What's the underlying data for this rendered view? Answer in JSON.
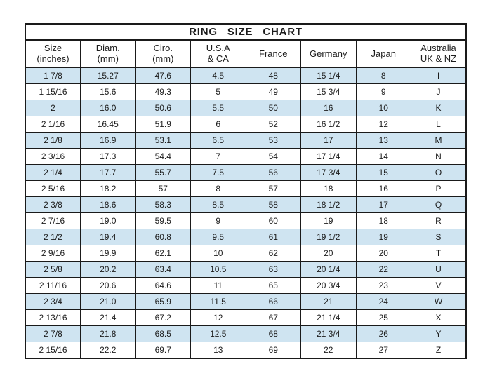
{
  "chart_data": {
    "type": "table",
    "title": "RING  SIZE  CHART",
    "columns": [
      {
        "label": "Size",
        "sublabel": "(inches)"
      },
      {
        "label": "Diam.",
        "sublabel": "(mm)"
      },
      {
        "label": "Ciro.",
        "sublabel": "(mm)"
      },
      {
        "label": "U.S.A",
        "sublabel": "& CA"
      },
      {
        "label": "France",
        "sublabel": ""
      },
      {
        "label": "Germany",
        "sublabel": ""
      },
      {
        "label": "Japan",
        "sublabel": ""
      },
      {
        "label": "Australia",
        "sublabel": "UK & NZ"
      }
    ],
    "rows": [
      [
        "1 7/8",
        "15.27",
        "47.6",
        "4.5",
        "48",
        "15 1/4",
        "8",
        "I"
      ],
      [
        "1 15/16",
        "15.6",
        "49.3",
        "5",
        "49",
        "15 3/4",
        "9",
        "J"
      ],
      [
        "2",
        "16.0",
        "50.6",
        "5.5",
        "50",
        "16",
        "10",
        "K"
      ],
      [
        "2 1/16",
        "16.45",
        "51.9",
        "6",
        "52",
        "16 1/2",
        "12",
        "L"
      ],
      [
        "2 1/8",
        "16.9",
        "53.1",
        "6.5",
        "53",
        "17",
        "13",
        "M"
      ],
      [
        "2 3/16",
        "17.3",
        "54.4",
        "7",
        "54",
        "17 1/4",
        "14",
        "N"
      ],
      [
        "2 1/4",
        "17.7",
        "55.7",
        "7.5",
        "56",
        "17 3/4",
        "15",
        "O"
      ],
      [
        "2 5/16",
        "18.2",
        "57",
        "8",
        "57",
        "18",
        "16",
        "P"
      ],
      [
        "2 3/8",
        "18.6",
        "58.3",
        "8.5",
        "58",
        "18 1/2",
        "17",
        "Q"
      ],
      [
        "2 7/16",
        "19.0",
        "59.5",
        "9",
        "60",
        "19",
        "18",
        "R"
      ],
      [
        "2 1/2",
        "19.4",
        "60.8",
        "9.5",
        "61",
        "19 1/2",
        "19",
        "S"
      ],
      [
        "2 9/16",
        "19.9",
        "62.1",
        "10",
        "62",
        "20",
        "20",
        "T"
      ],
      [
        "2 5/8",
        "20.2",
        "63.4",
        "10.5",
        "63",
        "20 1/4",
        "22",
        "U"
      ],
      [
        "2 11/16",
        "20.6",
        "64.6",
        "11",
        "65",
        "20 3/4",
        "23",
        "V"
      ],
      [
        "2 3/4",
        "21.0",
        "65.9",
        "11.5",
        "66",
        "21",
        "24",
        "W"
      ],
      [
        "2 13/16",
        "21.4",
        "67.2",
        "12",
        "67",
        "21 1/4",
        "25",
        "X"
      ],
      [
        "2 7/8",
        "21.8",
        "68.5",
        "12.5",
        "68",
        "21 3/4",
        "26",
        "Y"
      ],
      [
        "2 15/16",
        "22.2",
        "69.7",
        "13",
        "69",
        "22",
        "27",
        "Z"
      ]
    ],
    "layout": {
      "row_alternation": "odd rows highlighted starting with first data row",
      "highlight_color": "#cfe4f1",
      "border_color": "#1a1a1a",
      "background": "#ffffff"
    }
  }
}
